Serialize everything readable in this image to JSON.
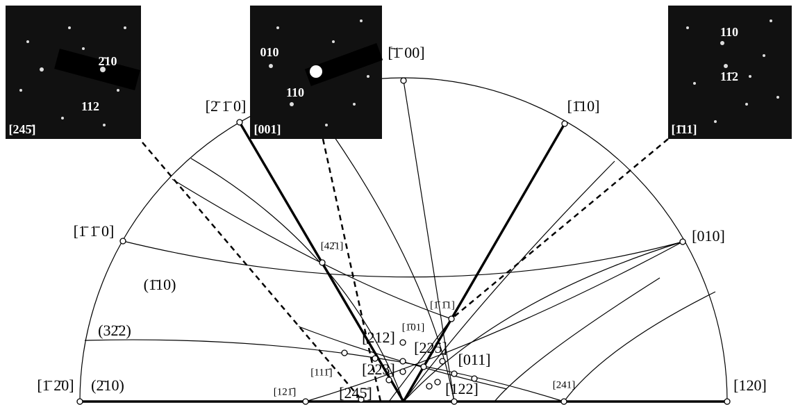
{
  "poles": [
    "[̄1̄ 00]",
    "[2̄ 1̄ 0]",
    "[1̄10]",
    "[1̄ 1̄ 0]",
    "[010]",
    "[1̄ 2̄0]",
    "[120]",
    "[42̄1]",
    "[1̄ 1̄1]",
    "[1̄01]",
    "[212]",
    "[225]",
    "[011]",
    "[223]",
    "[111̄]",
    "[122]",
    "[241]",
    "[121̄]",
    "[245̄]"
  ],
  "planes": [
    "(2̄10)",
    "(1̄10)",
    "(32̄2)"
  ],
  "insets": [
    {
      "spots": [
        "2̄10",
        "112"
      ],
      "zone": "[245̄]"
    },
    {
      "spots": [
        "010",
        "110"
      ],
      "zone": "[001]"
    },
    {
      "spots": [
        "110",
        "11̄2"
      ],
      "zone": "[1̄11]"
    }
  ]
}
